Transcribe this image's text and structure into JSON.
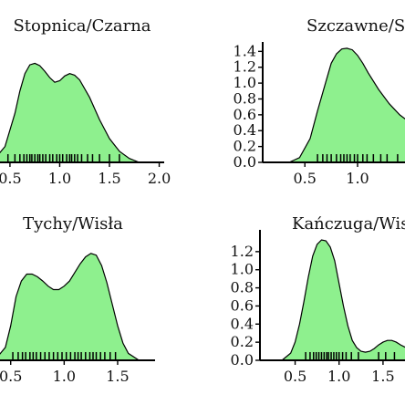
{
  "figure": {
    "background": "#ffffff",
    "fill_color": "#8ef08e",
    "line_color": "#000000"
  },
  "chart_data": [
    {
      "type": "area",
      "title": "Stopnica/Czarna",
      "xlabel": "",
      "ylabel": "",
      "xlim": [
        0.4,
        2.05
      ],
      "ylim": [
        0,
        1.45
      ],
      "x_ticks": [
        {
          "v": 0.5,
          "label": "0.5"
        },
        {
          "v": 1.0,
          "label": "1.0"
        },
        {
          "v": 1.5,
          "label": "1.5"
        },
        {
          "v": 2.0,
          "label": "2.0"
        }
      ],
      "y_ticks": [],
      "series": [
        {
          "x": [
            0.35,
            0.45,
            0.55,
            0.6,
            0.65,
            0.7,
            0.75,
            0.8,
            0.85,
            0.9,
            0.95,
            1.0,
            1.05,
            1.1,
            1.15,
            1.2,
            1.3,
            1.4,
            1.5,
            1.6,
            1.7,
            1.8
          ],
          "y": [
            0.05,
            0.2,
            0.62,
            0.9,
            1.12,
            1.23,
            1.25,
            1.22,
            1.15,
            1.07,
            1.01,
            1.03,
            1.09,
            1.12,
            1.1,
            1.04,
            0.82,
            0.54,
            0.3,
            0.14,
            0.05,
            0.0
          ]
        }
      ],
      "rug": [
        0.48,
        0.55,
        0.6,
        0.64,
        0.67,
        0.7,
        0.72,
        0.75,
        0.78,
        0.8,
        0.83,
        0.86,
        0.9,
        0.93,
        0.97,
        1.0,
        1.03,
        1.07,
        1.1,
        1.12,
        1.15,
        1.18,
        1.22,
        1.28,
        1.33,
        1.4,
        1.5,
        1.6
      ]
    },
    {
      "type": "area",
      "title": "Szczawne/Sa",
      "xlabel": "",
      "ylabel": "",
      "xlim": [
        0.1,
        1.45
      ],
      "ylim": [
        0,
        1.45
      ],
      "x_ticks": [
        {
          "v": 0.5,
          "label": "0.5"
        },
        {
          "v": 1.0,
          "label": "1.0"
        }
      ],
      "y_ticks": [
        {
          "v": 0.0,
          "label": "0.0"
        },
        {
          "v": 0.2,
          "label": "0.2"
        },
        {
          "v": 0.4,
          "label": "0.4"
        },
        {
          "v": 0.6,
          "label": "0.6"
        },
        {
          "v": 0.8,
          "label": "0.8"
        },
        {
          "v": 1.0,
          "label": "1.0"
        },
        {
          "v": 1.2,
          "label": "1.2"
        },
        {
          "v": 1.4,
          "label": "1.4"
        }
      ],
      "series": [
        {
          "x": [
            0.35,
            0.45,
            0.55,
            0.62,
            0.7,
            0.75,
            0.8,
            0.85,
            0.9,
            0.95,
            1.0,
            1.05,
            1.1,
            1.2,
            1.3,
            1.4,
            1.5
          ],
          "y": [
            0.0,
            0.06,
            0.3,
            0.65,
            1.02,
            1.25,
            1.37,
            1.43,
            1.44,
            1.42,
            1.35,
            1.25,
            1.13,
            0.92,
            0.74,
            0.6,
            0.5
          ]
        }
      ],
      "rug": [
        0.62,
        0.67,
        0.71,
        0.75,
        0.8,
        0.84,
        0.87,
        0.9,
        0.93,
        0.97,
        1.0,
        1.05,
        1.09,
        1.15,
        1.22,
        1.28,
        1.38
      ]
    },
    {
      "type": "area",
      "title": "Tychy/Wisła",
      "xlabel": "",
      "ylabel": "",
      "xlim": [
        0.4,
        1.85
      ],
      "ylim": [
        0,
        1.45
      ],
      "x_ticks": [
        {
          "v": 0.5,
          "label": "0.5"
        },
        {
          "v": 1.0,
          "label": "1.0"
        },
        {
          "v": 1.5,
          "label": "1.5"
        }
      ],
      "y_ticks": [],
      "series": [
        {
          "x": [
            0.35,
            0.45,
            0.5,
            0.55,
            0.6,
            0.65,
            0.7,
            0.75,
            0.8,
            0.85,
            0.9,
            0.95,
            1.0,
            1.05,
            1.1,
            1.15,
            1.2,
            1.25,
            1.3,
            1.35,
            1.4,
            1.45,
            1.5,
            1.55,
            1.6,
            1.7
          ],
          "y": [
            0.0,
            0.15,
            0.4,
            0.74,
            0.92,
            1.0,
            1.0,
            0.97,
            0.92,
            0.86,
            0.82,
            0.82,
            0.86,
            0.92,
            1.02,
            1.12,
            1.2,
            1.24,
            1.22,
            1.1,
            0.9,
            0.65,
            0.4,
            0.2,
            0.08,
            0.0
          ]
        }
      ],
      "rug": [
        0.52,
        0.57,
        0.61,
        0.64,
        0.68,
        0.71,
        0.74,
        0.78,
        0.82,
        0.86,
        0.9,
        0.94,
        0.98,
        1.02,
        1.06,
        1.1,
        1.13,
        1.16,
        1.2,
        1.24,
        1.27,
        1.3,
        1.34,
        1.38,
        1.43,
        1.48
      ]
    },
    {
      "type": "area",
      "title": "Kańczuga/Wis",
      "xlabel": "",
      "ylabel": "",
      "xlim": [
        0.1,
        1.75
      ],
      "ylim": [
        0,
        1.38
      ],
      "x_ticks": [
        {
          "v": 0.5,
          "label": "0.5"
        },
        {
          "v": 1.0,
          "label": "1.0"
        },
        {
          "v": 1.5,
          "label": "1.5"
        }
      ],
      "y_ticks": [
        {
          "v": 0.0,
          "label": "0.0"
        },
        {
          "v": 0.2,
          "label": "0.2"
        },
        {
          "v": 0.4,
          "label": "0.4"
        },
        {
          "v": 0.6,
          "label": "0.6"
        },
        {
          "v": 0.8,
          "label": "0.8"
        },
        {
          "v": 1.0,
          "label": "1.0"
        },
        {
          "v": 1.2,
          "label": "1.2"
        }
      ],
      "series": [
        {
          "x": [
            0.35,
            0.45,
            0.5,
            0.55,
            0.6,
            0.65,
            0.7,
            0.75,
            0.8,
            0.85,
            0.9,
            0.95,
            1.0,
            1.05,
            1.1,
            1.15,
            1.2,
            1.25,
            1.3,
            1.35,
            1.4,
            1.45,
            1.5,
            1.55,
            1.6,
            1.65,
            1.7,
            1.8
          ],
          "y": [
            0.0,
            0.08,
            0.2,
            0.4,
            0.65,
            0.92,
            1.15,
            1.28,
            1.33,
            1.32,
            1.25,
            1.1,
            0.85,
            0.6,
            0.38,
            0.22,
            0.14,
            0.1,
            0.09,
            0.1,
            0.13,
            0.17,
            0.2,
            0.22,
            0.22,
            0.2,
            0.17,
            0.12
          ]
        }
      ],
      "rug": [
        0.62,
        0.67,
        0.71,
        0.74,
        0.77,
        0.8,
        0.83,
        0.86,
        0.88,
        0.91,
        0.94,
        0.97,
        1.0,
        1.04,
        1.08,
        1.14,
        1.22,
        1.45,
        1.53,
        1.63
      ]
    }
  ]
}
